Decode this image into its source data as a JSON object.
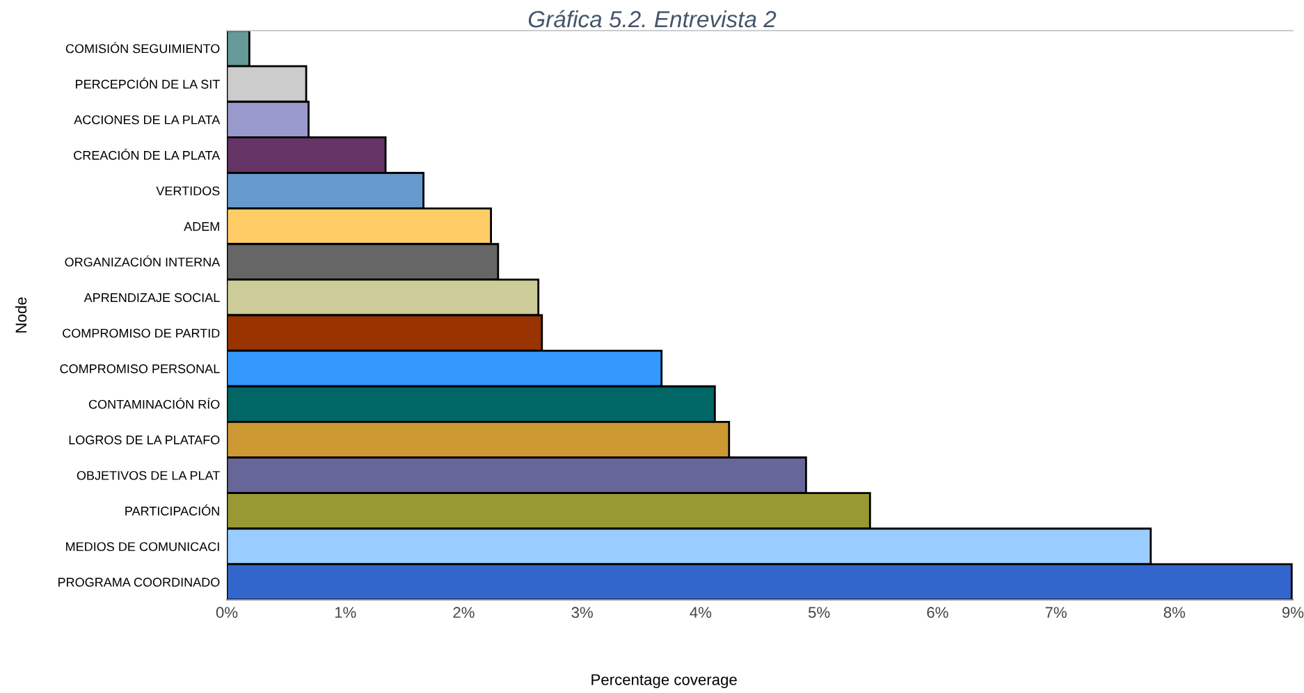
{
  "chart_data": {
    "type": "bar",
    "orientation": "horizontal",
    "title": "Gráfica 5.2. Entrevista 2",
    "xlabel": "Percentage coverage",
    "ylabel": "Node",
    "categories": [
      "COMISIÓN SEGUIMIENTO",
      "PERCEPCIÓN DE LA SIT",
      "ACCIONES DE LA PLATA",
      "CREACIÓN DE LA PLATA",
      "VERTIDOS",
      "ADEM",
      "ORGANIZACIÓN INTERNA",
      "APRENDIZAJE SOCIAL",
      "COMPROMISO DE PARTID",
      "COMPROMISO PERSONAL",
      "CONTAMINACIÓN RÍO",
      "LOGROS DE LA PLATAFO",
      "OBJETIVOS DE LA PLAT",
      "PARTICIPACIÓN",
      "MEDIOS DE COMUNICACI",
      "PROGRAMA COORDINADO"
    ],
    "values": [
      0.19,
      0.67,
      0.69,
      1.34,
      1.66,
      2.23,
      2.29,
      2.63,
      2.66,
      3.67,
      4.12,
      4.24,
      4.89,
      5.43,
      7.8,
      8.99
    ],
    "colors": [
      "#669999",
      "#cccccc",
      "#9999cc",
      "#663366",
      "#6699cc",
      "#ffcc66",
      "#666666",
      "#cccc99",
      "#993300",
      "#3399ff",
      "#006666",
      "#cc9933",
      "#666699",
      "#999933",
      "#99ccff",
      "#3366cc"
    ],
    "xlim": [
      0,
      9
    ],
    "xticks": [
      {
        "value": 0,
        "label": "0%"
      },
      {
        "value": 1,
        "label": "1%"
      },
      {
        "value": 2,
        "label": "2%"
      },
      {
        "value": 3,
        "label": "3%"
      },
      {
        "value": 4,
        "label": "4%"
      },
      {
        "value": 5,
        "label": "5%"
      },
      {
        "value": 6,
        "label": "6%"
      },
      {
        "value": 7,
        "label": "7%"
      },
      {
        "value": 8,
        "label": "8%"
      },
      {
        "value": 9,
        "label": "9%"
      }
    ]
  }
}
